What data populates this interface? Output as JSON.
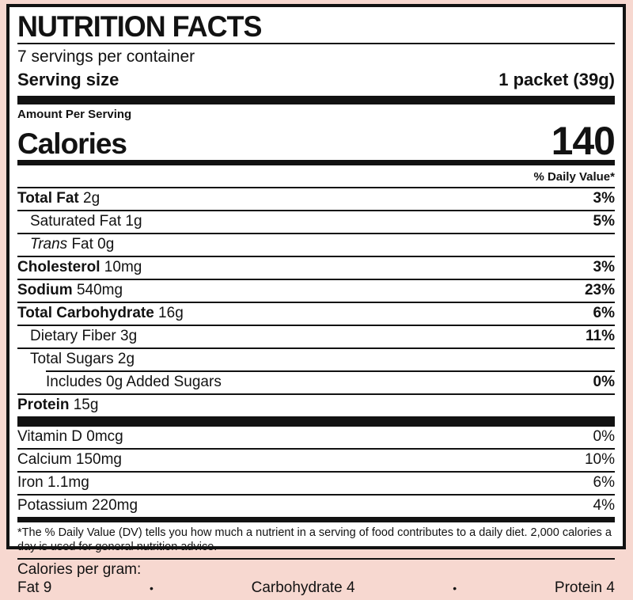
{
  "colors": {
    "page_background": "#f7d8d0",
    "label_background": "#ffffff",
    "ink": "#121212"
  },
  "header": {
    "title": "NUTRITION FACTS",
    "servings_per_container": "7 servings per container",
    "serving_size_label": "Serving size",
    "serving_size_value": "1 packet (39g)"
  },
  "calories": {
    "amount_per_serving": "Amount Per Serving",
    "label": "Calories",
    "value": "140"
  },
  "daily_value_header": "% Daily Value*",
  "main_rows": [
    {
      "name": "Total Fat",
      "rest": " 2g",
      "dv": "3%",
      "name_style": "bold",
      "indent": 0,
      "indent_rule": false
    },
    {
      "name": "Saturated Fat",
      "rest": " 1g",
      "dv": "5%",
      "name_style": "regular",
      "indent": 1,
      "indent_rule": false
    },
    {
      "name": "Trans",
      "rest": " Fat 0g",
      "dv": "",
      "name_style": "italic",
      "indent": 1,
      "indent_rule": false
    },
    {
      "name": "Cholesterol",
      "rest": " 10mg",
      "dv": "3%",
      "name_style": "bold",
      "indent": 0,
      "indent_rule": false
    },
    {
      "name": "Sodium",
      "rest": " 540mg",
      "dv": "23%",
      "name_style": "bold",
      "indent": 0,
      "indent_rule": false
    },
    {
      "name": "Total Carbohydrate",
      "rest": " 16g",
      "dv": "6%",
      "name_style": "bold",
      "indent": 0,
      "indent_rule": false
    },
    {
      "name": "Dietary Fiber",
      "rest": " 3g",
      "dv": "11%",
      "name_style": "regular",
      "indent": 1,
      "indent_rule": false
    },
    {
      "name": "Total Sugars",
      "rest": " 2g",
      "dv": "",
      "name_style": "regular",
      "indent": 1,
      "indent_rule": false
    },
    {
      "name": "Includes 0g Added Sugars",
      "rest": "",
      "dv": "0%",
      "name_style": "regular",
      "indent": 2,
      "indent_rule": true
    },
    {
      "name": "Protein",
      "rest": " 15g",
      "dv": "",
      "name_style": "bold",
      "indent": 0,
      "indent_rule": false
    }
  ],
  "vitamin_rows": [
    {
      "name": "Vitamin D 0mcg",
      "dv": "0%"
    },
    {
      "name": "Calcium 150mg",
      "dv": "10%"
    },
    {
      "name": "Iron 1.1mg",
      "dv": "6%"
    },
    {
      "name": "Potassium 220mg",
      "dv": "4%"
    }
  ],
  "footnote": "*The % Daily Value (DV) tells you how much a nutrient in a serving of food contributes to a daily diet. 2,000 calories a day is used for general nutrition advice.",
  "calories_per_gram": {
    "label": "Calories per gram:",
    "bullet": "•",
    "items": [
      "Fat 9",
      "Carbohydrate 4",
      "Protein 4"
    ]
  }
}
